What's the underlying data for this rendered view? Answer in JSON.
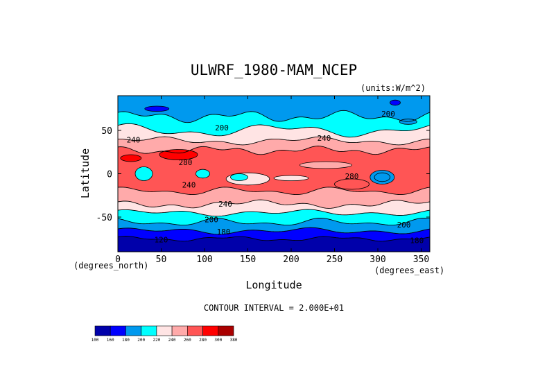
{
  "chart_data": {
    "type": "heatmap",
    "subtype": "filled-contour-map",
    "title": "ULWRF_1980-MAM_NCEP",
    "units": "(units:W/m^2)",
    "xlabel": "Longitude",
    "ylabel": "Latitude",
    "x_unit_note": "(degrees_east)",
    "y_unit_note": "(degrees_north)",
    "xlim": [
      0,
      360
    ],
    "ylim": [
      -90,
      90
    ],
    "x_ticks": [
      0,
      50,
      100,
      150,
      200,
      250,
      300,
      350
    ],
    "y_ticks": [
      50,
      0,
      -50
    ],
    "contour_interval_text": "CONTOUR INTERVAL = 2.000E+01",
    "colorbar": {
      "levels": [
        "100",
        "160",
        "180",
        "200",
        "220",
        "240",
        "260",
        "280",
        "300",
        "380"
      ],
      "colors": [
        "#0000aa",
        "#0000ff",
        "#0099ee",
        "#00ffff",
        "#ffe4e4",
        "#ffaaaa",
        "#ff5555",
        "#ff0000",
        "#aa0000"
      ]
    },
    "band_colors": {
      "pole_deep": "#0000aa",
      "pole": "#0000ff",
      "midlat": "#0099ee",
      "subpolar": "#00ffff",
      "mid": "#ffe4e4",
      "warm": "#ffaaaa",
      "hot": "#ff5555",
      "hottest": "#ff0000"
    },
    "contour_labels": [
      {
        "text": "200",
        "lon": 120,
        "lat": 50
      },
      {
        "text": "200",
        "lon": 312,
        "lat": 66
      },
      {
        "text": "240",
        "lon": 18,
        "lat": 36
      },
      {
        "text": "240",
        "lon": 238,
        "lat": 38
      },
      {
        "text": "280",
        "lon": 78,
        "lat": 10
      },
      {
        "text": "280",
        "lon": 270,
        "lat": -6
      },
      {
        "text": "240",
        "lon": 82,
        "lat": -16
      },
      {
        "text": "240",
        "lon": 124,
        "lat": -38
      },
      {
        "text": "200",
        "lon": 108,
        "lat": -56
      },
      {
        "text": "200",
        "lon": 330,
        "lat": -62
      },
      {
        "text": "180",
        "lon": 122,
        "lat": -70
      },
      {
        "text": "120",
        "lon": 50,
        "lat": -79
      },
      {
        "text": "180",
        "lon": 345,
        "lat": -80
      }
    ]
  }
}
